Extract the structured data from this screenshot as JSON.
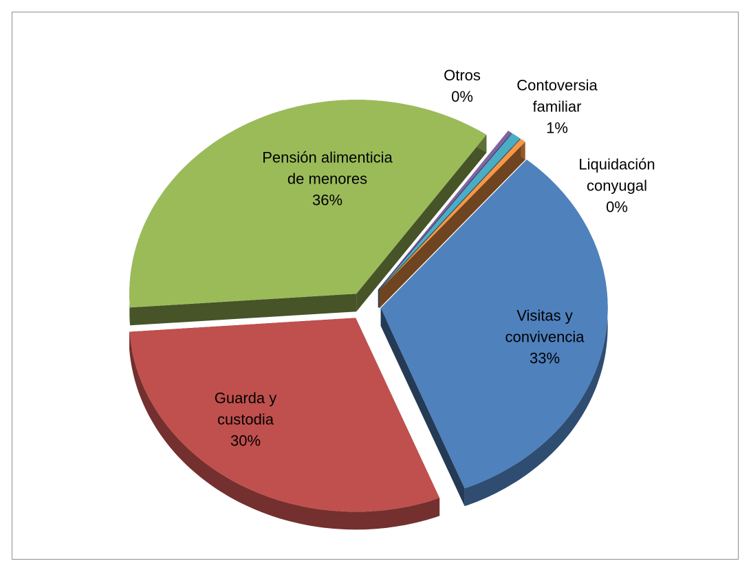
{
  "chart_data": {
    "type": "pie",
    "categories": [
      "Visitas y convivencia",
      "Guarda y custodia",
      "Pensión alimenticia de menores",
      "Otros",
      "Contoversia familiar",
      "Liquidación conyugal"
    ],
    "values": [
      33,
      30,
      36,
      0.3,
      0.7,
      0.4
    ],
    "value_labels": [
      "33%",
      "30%",
      "36%",
      "0%",
      "1%",
      "0%"
    ],
    "colors": [
      "#4f81bd",
      "#c0504d",
      "#9bbb59",
      "#8064a2",
      "#4bacc6",
      "#f79646"
    ],
    "legend": false
  }
}
